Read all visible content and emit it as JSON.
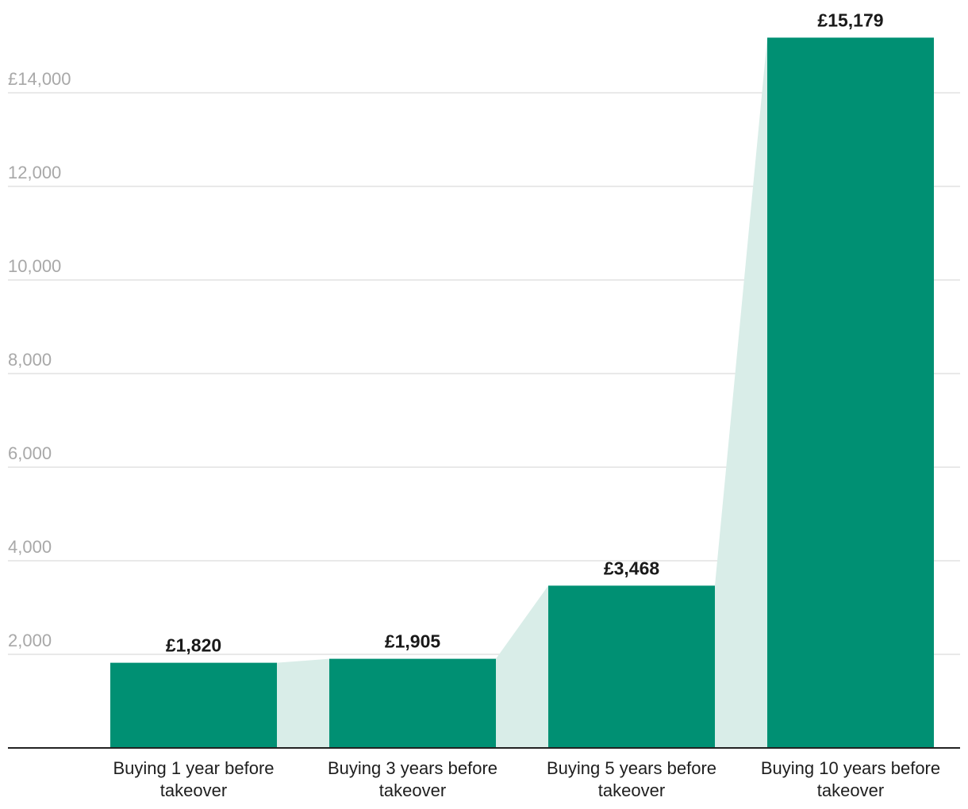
{
  "chart_data": {
    "type": "bar",
    "title": "",
    "xlabel": "",
    "ylabel": "",
    "categories": [
      [
        "Buying 1 year before",
        "takeover"
      ],
      [
        "Buying 3 years before",
        "takeover"
      ],
      [
        "Buying 5 years before",
        "takeover"
      ],
      [
        "Buying 10 years before",
        "takeover"
      ]
    ],
    "values": [
      1820,
      1905,
      3468,
      15179
    ],
    "data_labels": [
      "£1,820",
      "£1,905",
      "£3,468",
      "£15,179"
    ],
    "ylim": [
      0,
      15179
    ],
    "y_ticks": [
      2000,
      4000,
      6000,
      8000,
      10000,
      12000,
      14000
    ],
    "y_tick_labels": [
      "2,000",
      "4,000",
      "6,000",
      "8,000",
      "10,000",
      "12,000",
      "£14,000"
    ],
    "grid": true,
    "legend": "none",
    "colors": {
      "bar": "#009073",
      "connector": "#d9ede8",
      "grid": "#e2e2e2",
      "baseline": "#222222"
    }
  }
}
